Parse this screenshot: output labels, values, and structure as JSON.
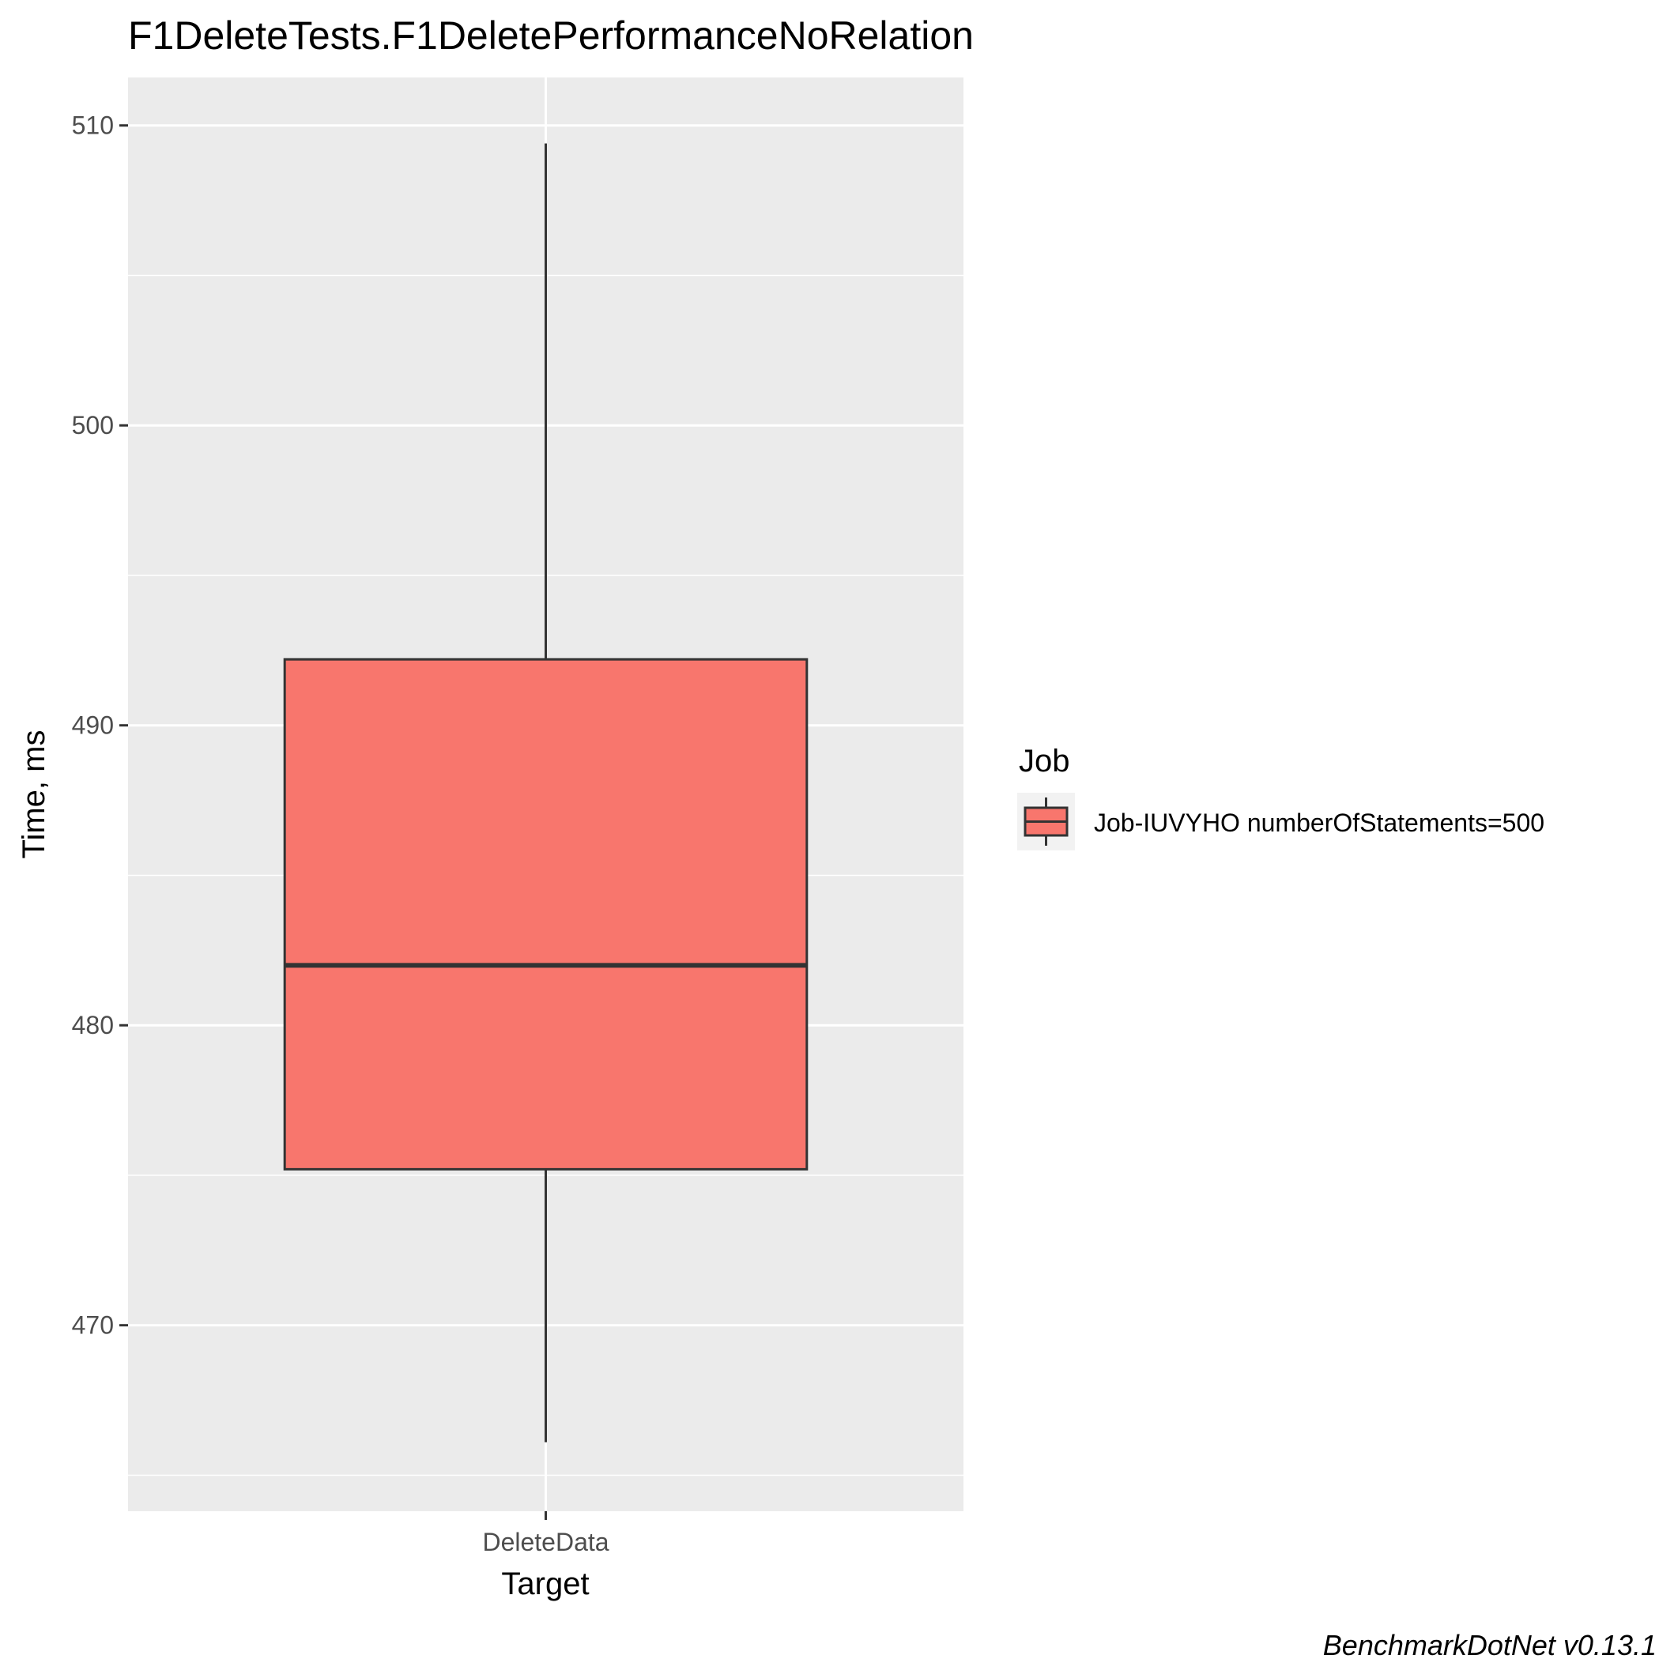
{
  "chart_data": {
    "type": "boxplot",
    "title": "F1DeleteTests.F1DeletePerformanceNoRelation",
    "xlabel": "Target",
    "ylabel": "Time, ms",
    "categories": [
      "DeleteData"
    ],
    "ylim": [
      463.8,
      511.6
    ],
    "y_ticks": [
      470,
      480,
      490,
      500,
      510
    ],
    "grid": true,
    "legend": {
      "title": "Job",
      "position": "right",
      "entries": [
        "Job-IUVYHO numberOfStatements=500"
      ]
    },
    "series": [
      {
        "name": "Job-IUVYHO numberOfStatements=500",
        "color": "#F8766D",
        "boxes": [
          {
            "category": "DeleteData",
            "min": 466.1,
            "q1": 475.2,
            "median": 482.0,
            "q3": 492.2,
            "max": 509.4
          }
        ]
      }
    ],
    "caption": "BenchmarkDotNet v0.13.1"
  }
}
